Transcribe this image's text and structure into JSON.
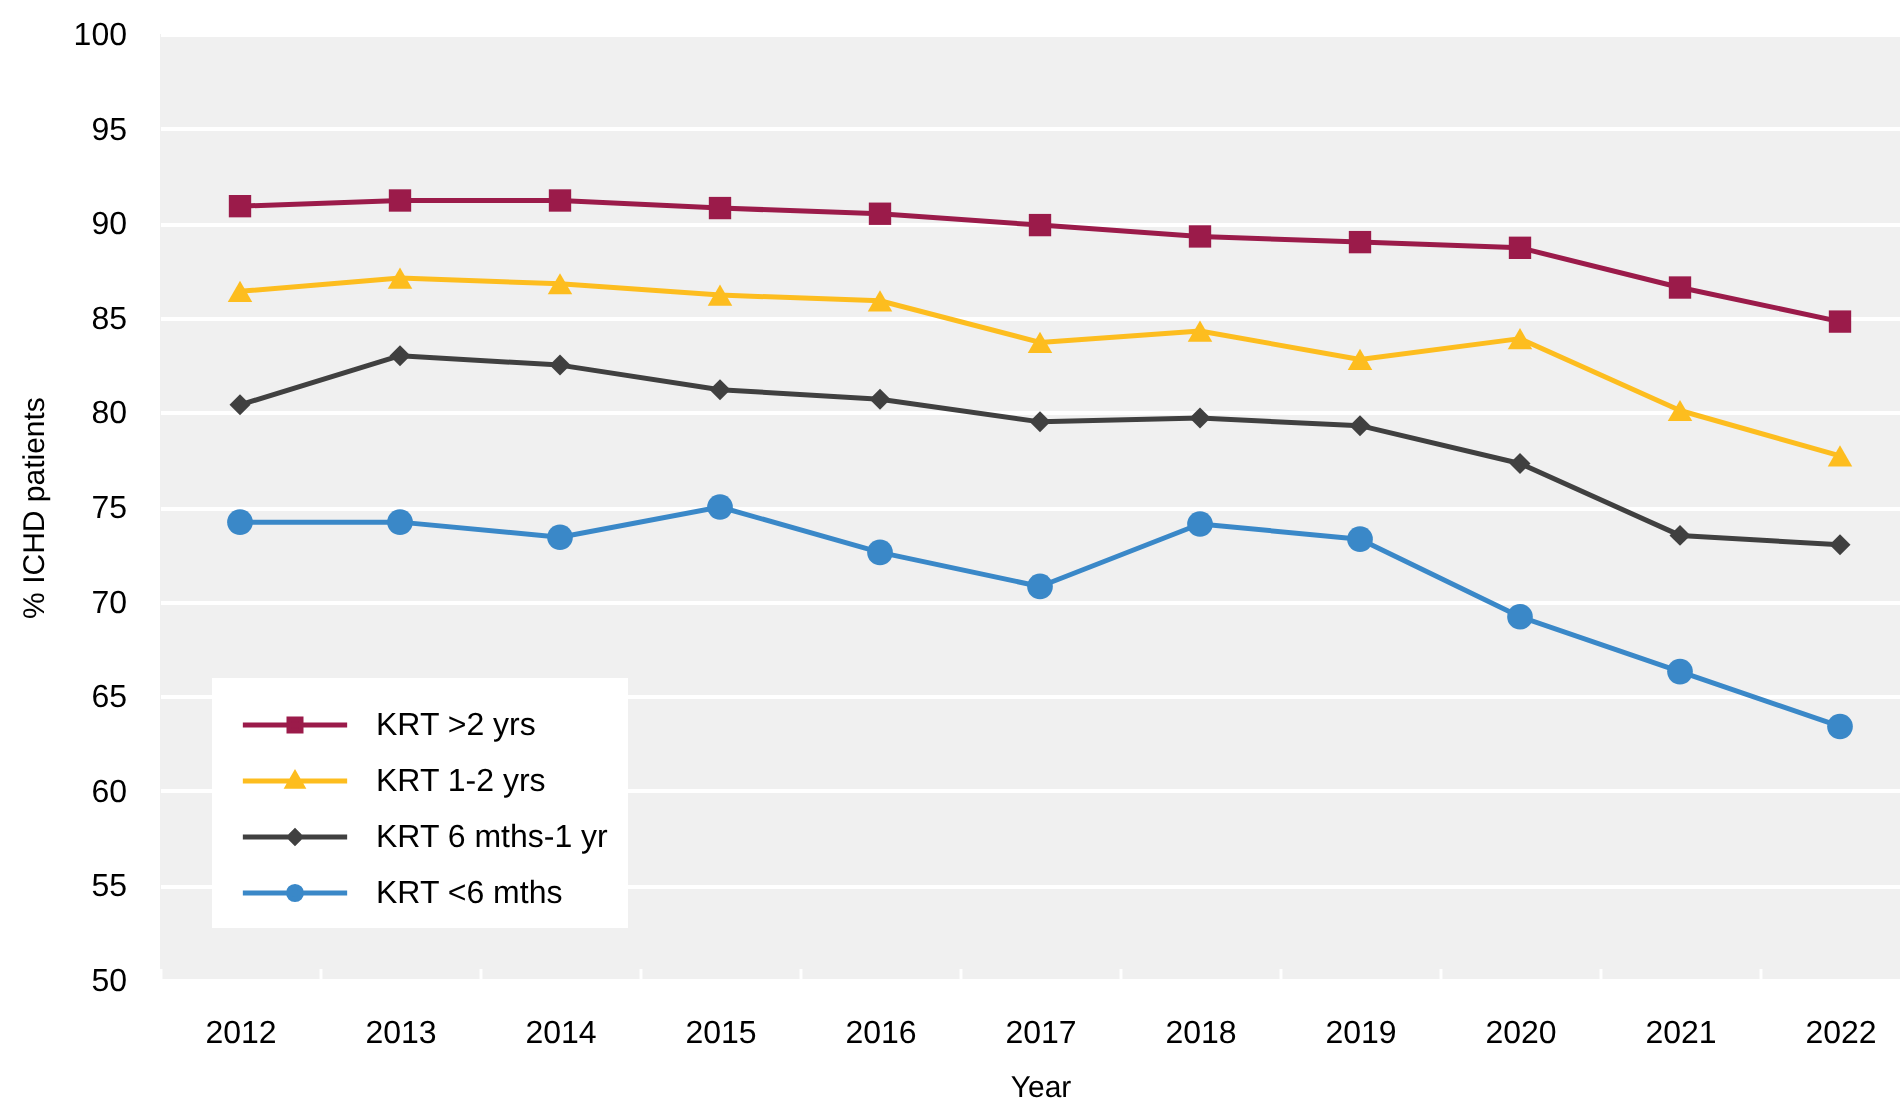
{
  "chart_data": {
    "type": "line",
    "xlabel": "Year",
    "ylabel": "% ICHD patients",
    "categories": [
      "2012",
      "2013",
      "2014",
      "2015",
      "2016",
      "2017",
      "2018",
      "2019",
      "2020",
      "2021",
      "2022"
    ],
    "ylim": [
      50,
      100
    ],
    "yticks": [
      50,
      55,
      60,
      65,
      70,
      75,
      80,
      85,
      90,
      95,
      100
    ],
    "grid": "y",
    "legend": "bottom left",
    "series": [
      {
        "name": "KRT >2 yrs",
        "color": "#9b1b4a",
        "marker": "square",
        "values": [
          90.9,
          91.2,
          91.2,
          90.8,
          90.5,
          89.9,
          89.3,
          89.0,
          88.7,
          86.6,
          84.8
        ]
      },
      {
        "name": "KRT 1-2 yrs",
        "color": "#fdbd1f",
        "marker": "triangle",
        "values": [
          86.4,
          87.1,
          86.8,
          86.2,
          85.9,
          83.7,
          84.3,
          82.8,
          83.9,
          80.1,
          77.7
        ]
      },
      {
        "name": "KRT 6 mths-1 yr",
        "color": "#404040",
        "marker": "diamond",
        "values": [
          80.4,
          83.0,
          82.5,
          81.2,
          80.7,
          79.5,
          79.7,
          79.3,
          77.3,
          73.5,
          73.0
        ]
      },
      {
        "name": "KRT <6 mths",
        "color": "#3a88c8",
        "marker": "circle",
        "values": [
          74.2,
          74.2,
          73.4,
          75.0,
          72.6,
          70.8,
          74.1,
          73.3,
          69.2,
          66.3,
          63.4
        ]
      }
    ]
  }
}
